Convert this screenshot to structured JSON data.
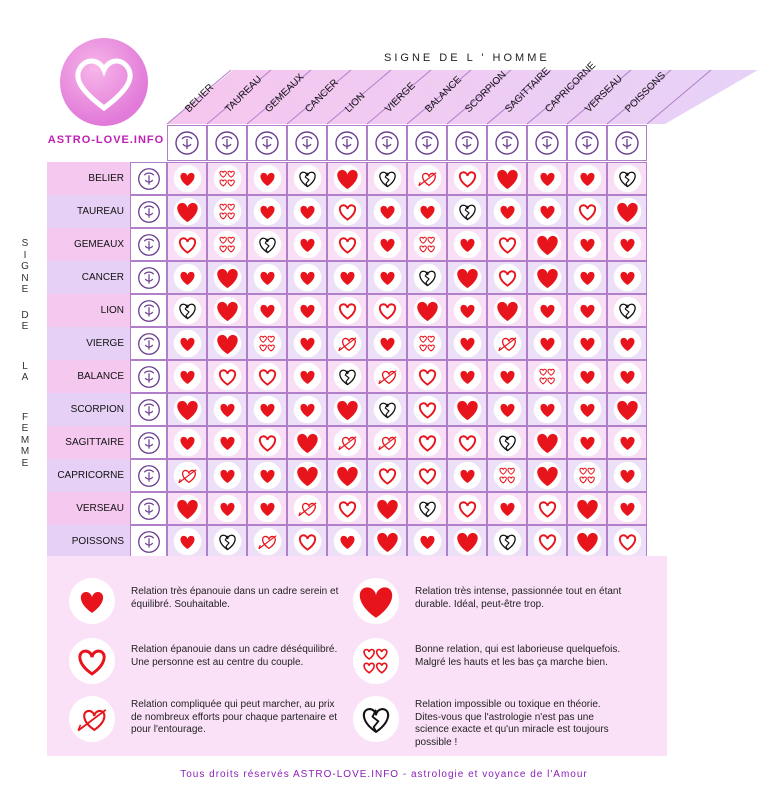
{
  "logo": {
    "text": "ASTRO-LOVE.INFO"
  },
  "header": {
    "title": "SIGNE   DE   L ' HOMME"
  },
  "side": {
    "title": "S I G N E   D E   L A   F E M M E"
  },
  "columns": [
    "BELIER",
    "TAUREAU",
    "GEMEAUX",
    "CANCER",
    "LION",
    "VIERGE",
    "BALANCE",
    "SCORPION",
    "SAGITTAIRE",
    "CAPRICORNE",
    "VERSEAU",
    "POISSONS"
  ],
  "rows": [
    "BELIER",
    "TAUREAU",
    "GEMEAUX",
    "CANCER",
    "LION",
    "VIERGE",
    "BALANCE",
    "SCORPION",
    "SAGITTAIRE",
    "CAPRICORNE",
    "VERSEAU",
    "POISSONS"
  ],
  "matrix": [
    [
      "solid",
      "hearts",
      "solid",
      "broken",
      "big",
      "broken",
      "arrow",
      "outline",
      "big",
      "solid",
      "solid",
      "broken"
    ],
    [
      "big",
      "hearts",
      "solid",
      "solid",
      "outline",
      "solid",
      "solid",
      "broken",
      "solid",
      "solid",
      "outline",
      "big"
    ],
    [
      "outline",
      "hearts",
      "broken",
      "solid",
      "outline",
      "solid",
      "hearts",
      "solid",
      "outline",
      "big",
      "solid",
      "solid"
    ],
    [
      "solid",
      "big",
      "solid",
      "solid",
      "solid",
      "solid",
      "broken",
      "big",
      "outline",
      "big",
      "solid",
      "solid"
    ],
    [
      "broken",
      "big",
      "solid",
      "solid",
      "outline",
      "outline",
      "big",
      "solid",
      "big",
      "solid",
      "solid",
      "broken"
    ],
    [
      "solid",
      "big",
      "hearts",
      "solid",
      "arrow",
      "solid",
      "hearts",
      "solid",
      "arrow",
      "solid",
      "solid",
      "solid"
    ],
    [
      "solid",
      "outline",
      "outline",
      "solid",
      "broken",
      "arrow",
      "outline",
      "solid",
      "solid",
      "hearts",
      "solid",
      "solid"
    ],
    [
      "big",
      "solid",
      "solid",
      "solid",
      "big",
      "broken",
      "outline",
      "big",
      "solid",
      "solid",
      "solid",
      "big"
    ],
    [
      "solid",
      "solid",
      "outline",
      "big",
      "arrow",
      "arrow",
      "outline",
      "outline",
      "broken",
      "big",
      "solid",
      "solid"
    ],
    [
      "arrow",
      "solid",
      "solid",
      "big",
      "big",
      "outline",
      "outline",
      "solid",
      "hearts",
      "big",
      "hearts",
      "solid"
    ],
    [
      "big",
      "solid",
      "solid",
      "arrow",
      "outline",
      "big",
      "broken",
      "outline",
      "solid",
      "outline",
      "big",
      "solid"
    ],
    [
      "solid",
      "broken",
      "arrow",
      "outline",
      "solid",
      "big",
      "solid",
      "big",
      "broken",
      "outline",
      "big",
      "outline"
    ]
  ],
  "legend": {
    "solid": "Relation très épanouie dans un cadre serein et équilibré. Souhaitable.",
    "big": "Relation très intense, passionnée tout en étant durable. Idéal, peut-être trop.",
    "outline": "Relation épanouie dans un cadre déséquilibré. Une personne est au centre du couple.",
    "hearts": "Bonne relation, qui est  laborieuse quelquefois. Malgré les hauts et les bas ça marche bien.",
    "arrow": "Relation compliquée qui peut marcher, au prix de nombreux efforts pour chaque partenaire et pour l'entourage.",
    "broken": "Relation impossible ou toxique en théorie. Dites-vous que l'astrologie n'est pas une science exacte et qu'un miracle est toujours possible !"
  },
  "footer": "Tous droits réservés ASTRO-LOVE.INFO - astrologie et voyance de l'Amour",
  "colors": {
    "red": "#e8141c",
    "pink": "#f4c8ef",
    "lavender": "#e6d0f6",
    "purple": "#8b1fb7"
  },
  "icons": [
    "heart-solid-icon",
    "heart-big-icon",
    "heart-outline-icon",
    "hearts-small-icon",
    "heart-arrow-icon",
    "heart-broken-icon",
    "zodiac-sign-icon"
  ]
}
